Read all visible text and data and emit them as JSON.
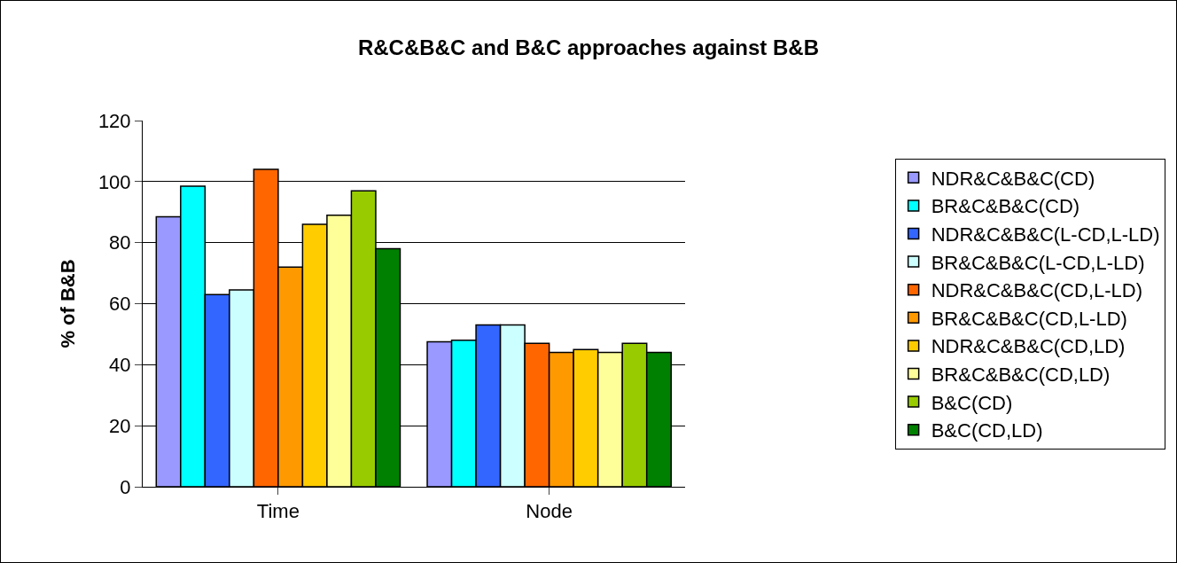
{
  "chart_data": {
    "type": "bar",
    "title": "R&C&B&C and B&C approaches against B&B",
    "ylabel": "% of B&B",
    "categories": [
      "Time",
      "Node"
    ],
    "ylim": [
      0,
      120
    ],
    "yticks": [
      0,
      20,
      40,
      60,
      80,
      100,
      120
    ],
    "grid": "y",
    "legend": "right",
    "series": [
      {
        "name": "NDR&C&B&C(CD)",
        "color": "#9999ff",
        "values": [
          88.5,
          47.5
        ]
      },
      {
        "name": "BR&C&B&C(CD)",
        "color": "#00ffff",
        "values": [
          98.5,
          48
        ]
      },
      {
        "name": "NDR&C&B&C(L-CD,L-LD)",
        "color": "#3366ff",
        "values": [
          63,
          53
        ]
      },
      {
        "name": "BR&C&B&C(L-CD,L-LD)",
        "color": "#ccffff",
        "values": [
          64.5,
          53
        ]
      },
      {
        "name": "NDR&C&B&C(CD,L-LD)",
        "color": "#ff6600",
        "values": [
          104,
          47
        ]
      },
      {
        "name": "BR&C&B&C(CD,L-LD)",
        "color": "#ff9900",
        "values": [
          72,
          44
        ]
      },
      {
        "name": "NDR&C&B&C(CD,LD)",
        "color": "#ffcc00",
        "values": [
          86,
          45
        ]
      },
      {
        "name": "BR&C&B&C(CD,LD)",
        "color": "#ffff99",
        "values": [
          89,
          44
        ]
      },
      {
        "name": "B&C(CD)",
        "color": "#99cc00",
        "values": [
          97,
          47
        ]
      },
      {
        "name": "B&C(CD,LD)",
        "color": "#008000",
        "values": [
          78,
          44
        ]
      }
    ]
  }
}
